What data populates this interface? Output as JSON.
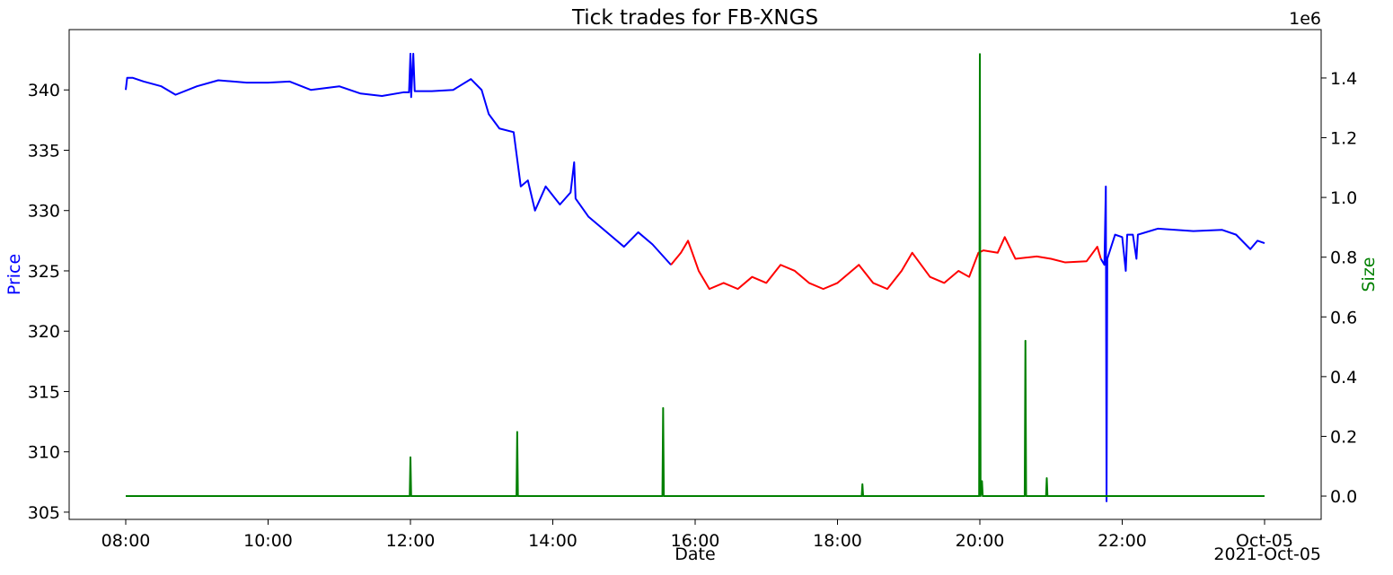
{
  "chart_data": {
    "type": "line",
    "title": "Tick trades for FB-XNGS",
    "x_label": "Date",
    "y_label": "Price",
    "y2_label": "Size",
    "x_offset_label": "2021-Oct-05",
    "y2_offset_label": "1e6",
    "y_label_color": "#0000ff",
    "y2_label_color": "#008000",
    "xlim": [
      7.205,
      24.795
    ],
    "xticks": [
      {
        "value": 8,
        "label": "08:00"
      },
      {
        "value": 10,
        "label": "10:00"
      },
      {
        "value": 12,
        "label": "12:00"
      },
      {
        "value": 14,
        "label": "14:00"
      },
      {
        "value": 16,
        "label": "16:00"
      },
      {
        "value": 18,
        "label": "18:00"
      },
      {
        "value": 20,
        "label": "20:00"
      },
      {
        "value": 22,
        "label": "22:00"
      },
      {
        "value": 24,
        "label": "Oct-05"
      }
    ],
    "ylim": [
      304.4,
      345.0
    ],
    "yticks": [
      305,
      310,
      315,
      320,
      325,
      330,
      335,
      340
    ],
    "y2lim": [
      -78000,
      1562000
    ],
    "y2ticks": [
      {
        "value": 0,
        "label": "0.0"
      },
      {
        "value": 200000,
        "label": "0.2"
      },
      {
        "value": 400000,
        "label": "0.4"
      },
      {
        "value": 600000,
        "label": "0.6"
      },
      {
        "value": 800000,
        "label": "0.8"
      },
      {
        "value": 1000000,
        "label": "1.0"
      },
      {
        "value": 1200000,
        "label": "1.2"
      },
      {
        "value": 1400000,
        "label": "1.4"
      }
    ],
    "series": [
      {
        "color": "#0000ff",
        "axis": "y",
        "x": [
          8.0,
          8.02,
          8.1,
          8.25,
          8.5,
          8.7,
          9.0,
          9.3,
          9.7,
          10.0,
          10.3,
          10.6,
          11.0,
          11.3,
          11.6,
          11.9,
          11.98,
          12.0,
          12.01,
          12.04,
          12.06,
          12.3,
          12.6,
          12.85,
          13.0,
          13.1,
          13.25,
          13.45,
          13.55,
          13.65,
          13.75,
          13.9,
          14.1,
          14.25,
          14.3,
          14.32,
          14.5,
          14.8,
          15.0,
          15.2,
          15.4,
          15.66
        ],
        "values": [
          340.0,
          341.0,
          341.0,
          340.7,
          340.3,
          339.6,
          340.3,
          340.8,
          340.6,
          340.6,
          340.7,
          340.0,
          340.3,
          339.7,
          339.5,
          339.8,
          339.8,
          343.0,
          339.4,
          343.0,
          339.9,
          339.9,
          340.0,
          340.9,
          340.0,
          338.0,
          336.8,
          336.5,
          332.0,
          332.5,
          330.0,
          332.0,
          330.5,
          331.5,
          334.0,
          331.0,
          329.5,
          328.0,
          327.0,
          328.2,
          327.2,
          325.5
        ]
      },
      {
        "color": "#ff0000",
        "axis": "y",
        "x": [
          15.66,
          15.8,
          15.9,
          16.05,
          16.2,
          16.4,
          16.6,
          16.8,
          17.0,
          17.2,
          17.4,
          17.6,
          17.8,
          18.0,
          18.3,
          18.5,
          18.7,
          18.9,
          19.05,
          19.3,
          19.5,
          19.7,
          19.85,
          19.98,
          20.05,
          20.25,
          20.35,
          20.5,
          20.8,
          21.0,
          21.2,
          21.5,
          21.65,
          21.7
        ],
        "values": [
          325.5,
          326.5,
          327.5,
          325.0,
          323.5,
          324.0,
          323.5,
          324.5,
          324.0,
          325.5,
          325.0,
          324.0,
          323.5,
          324.0,
          325.5,
          324.0,
          323.5,
          325.0,
          326.5,
          324.5,
          324.0,
          325.0,
          324.5,
          326.5,
          326.7,
          326.5,
          327.8,
          326.0,
          326.2,
          326.0,
          325.7,
          325.8,
          327.0,
          326.0
        ]
      },
      {
        "color": "#0000ff",
        "axis": "y",
        "x": [
          21.7,
          21.75,
          21.77,
          21.78,
          21.79,
          21.9,
          22.0,
          22.05,
          22.07,
          22.15,
          22.2,
          22.22,
          22.5,
          23.0,
          23.4,
          23.6,
          23.8,
          23.9,
          24.0
        ],
        "values": [
          326.0,
          325.5,
          332.0,
          305.9,
          326.0,
          328.0,
          327.8,
          325.0,
          328.0,
          328.0,
          326.0,
          328.0,
          328.5,
          328.3,
          328.4,
          328.0,
          326.8,
          327.5,
          327.3
        ]
      },
      {
        "color": "#008000",
        "axis": "y2",
        "x": [
          8.0,
          11.99,
          12.0,
          12.01,
          13.49,
          13.5,
          13.51,
          15.54,
          15.55,
          15.56,
          18.34,
          18.35,
          18.36,
          19.99,
          20.0,
          20.01,
          20.03,
          20.04,
          20.63,
          20.64,
          20.65,
          20.93,
          20.94,
          20.95,
          24.0
        ],
        "values": [
          0,
          0,
          130000,
          0,
          0,
          215000,
          0,
          0,
          295000,
          0,
          0,
          40000,
          0,
          0,
          1480000,
          0,
          50000,
          0,
          0,
          520000,
          0,
          0,
          60000,
          0,
          0
        ]
      }
    ]
  }
}
